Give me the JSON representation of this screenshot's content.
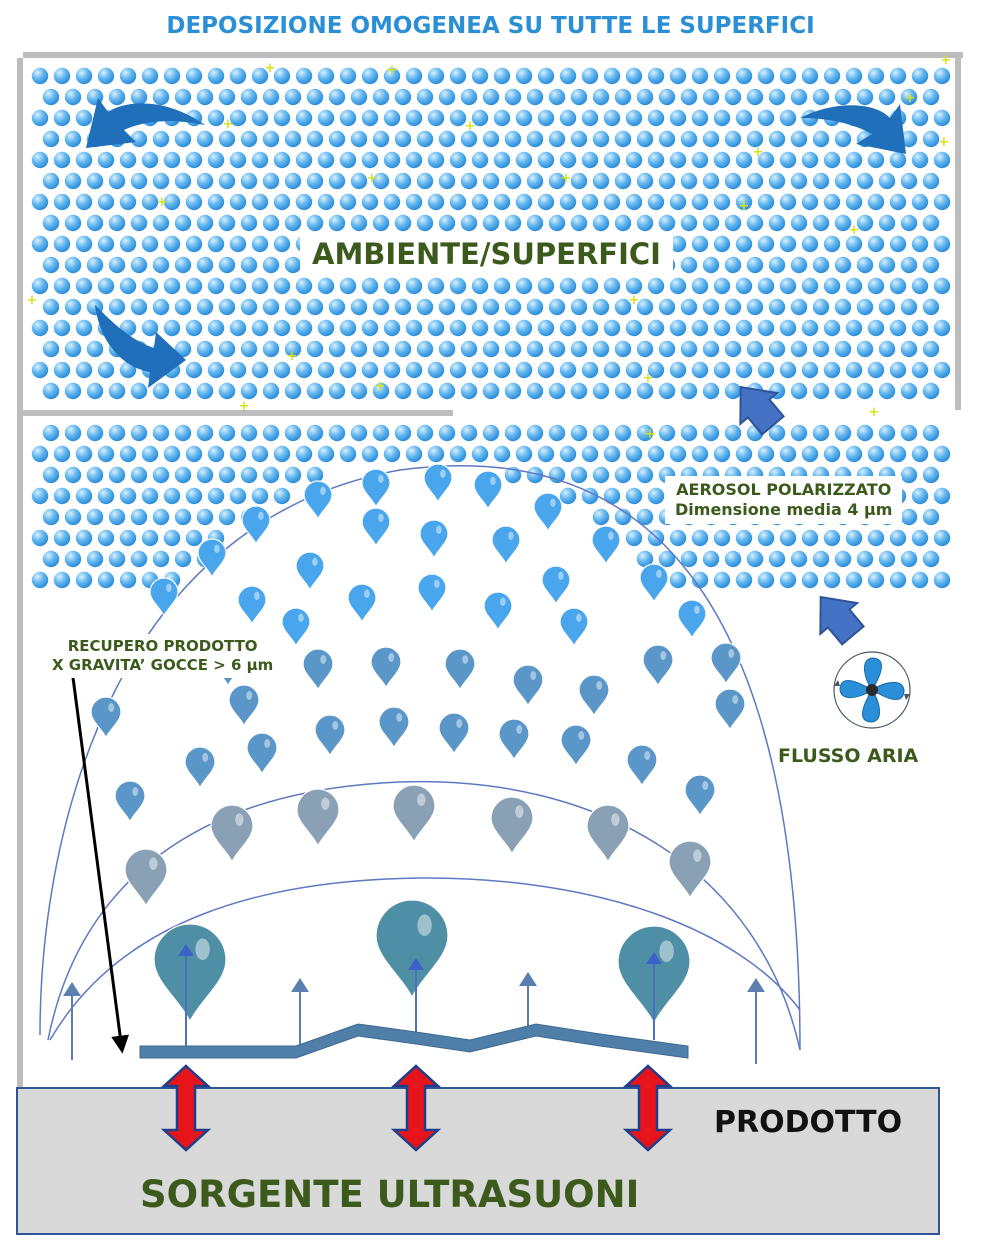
{
  "header": {
    "title": "DEPOSIZIONE OMOGENEA SU TUTTE LE SUPERFICI"
  },
  "labels": {
    "ambiente": "AMBIENTE/SUPERFICI",
    "aerosol_line1": "AEROSOL POLARIZZATO",
    "aerosol_line2": "Dimensione media 4 μm",
    "recupero_line1": "RECUPERO PRODOTTO",
    "recupero_line2": "X GRAVITA’ GOCCE > 6 μm",
    "flusso": "FLUSSO ARIA",
    "prodotto": "PRODOTTO",
    "sorgente": "SORGENTE ULTRASUONI"
  },
  "icons": {
    "fan": "fan-icon",
    "flow_arrows": "arrow-up-right-icon",
    "circulation_arrows": "curved-arrow-icon",
    "vibration_arrows": "double-arrow-vertical-icon"
  },
  "colors": {
    "title": "#2b8fd6",
    "label_green": "#3c5a1c",
    "aerosol_particle": "#3da0e8",
    "drop_light": "#4aa6ec",
    "drop_mid": "#5a96c8",
    "drop_grey": "#8aa0b4",
    "drop_large": "#4f8fa5",
    "flow_arrow": "#4472c4",
    "circulation_arrow": "#1f6fba",
    "vibration_arrow": "#e8141c",
    "base": "#d9d9d9"
  }
}
